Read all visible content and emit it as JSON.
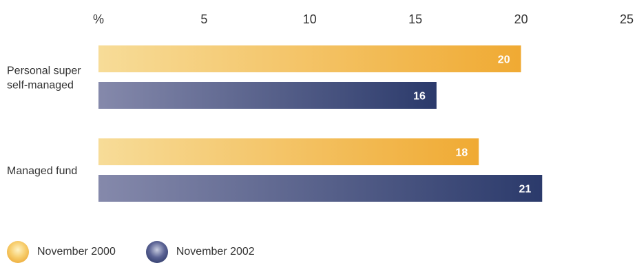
{
  "chart_data": {
    "type": "bar",
    "orientation": "horizontal",
    "unit_label": "%",
    "categories": [
      "Personal super\nself-managed",
      "Managed fund"
    ],
    "series": [
      {
        "name": "November 2000",
        "values": [
          20,
          18
        ],
        "color": "#f0aa33"
      },
      {
        "name": "November 2002",
        "values": [
          16,
          21
        ],
        "color": "#2b3a6b"
      }
    ],
    "xlim": [
      0,
      25
    ],
    "ticks": [
      5,
      10,
      15,
      20,
      25
    ],
    "grid": false,
    "legend_position": "bottom-left"
  }
}
